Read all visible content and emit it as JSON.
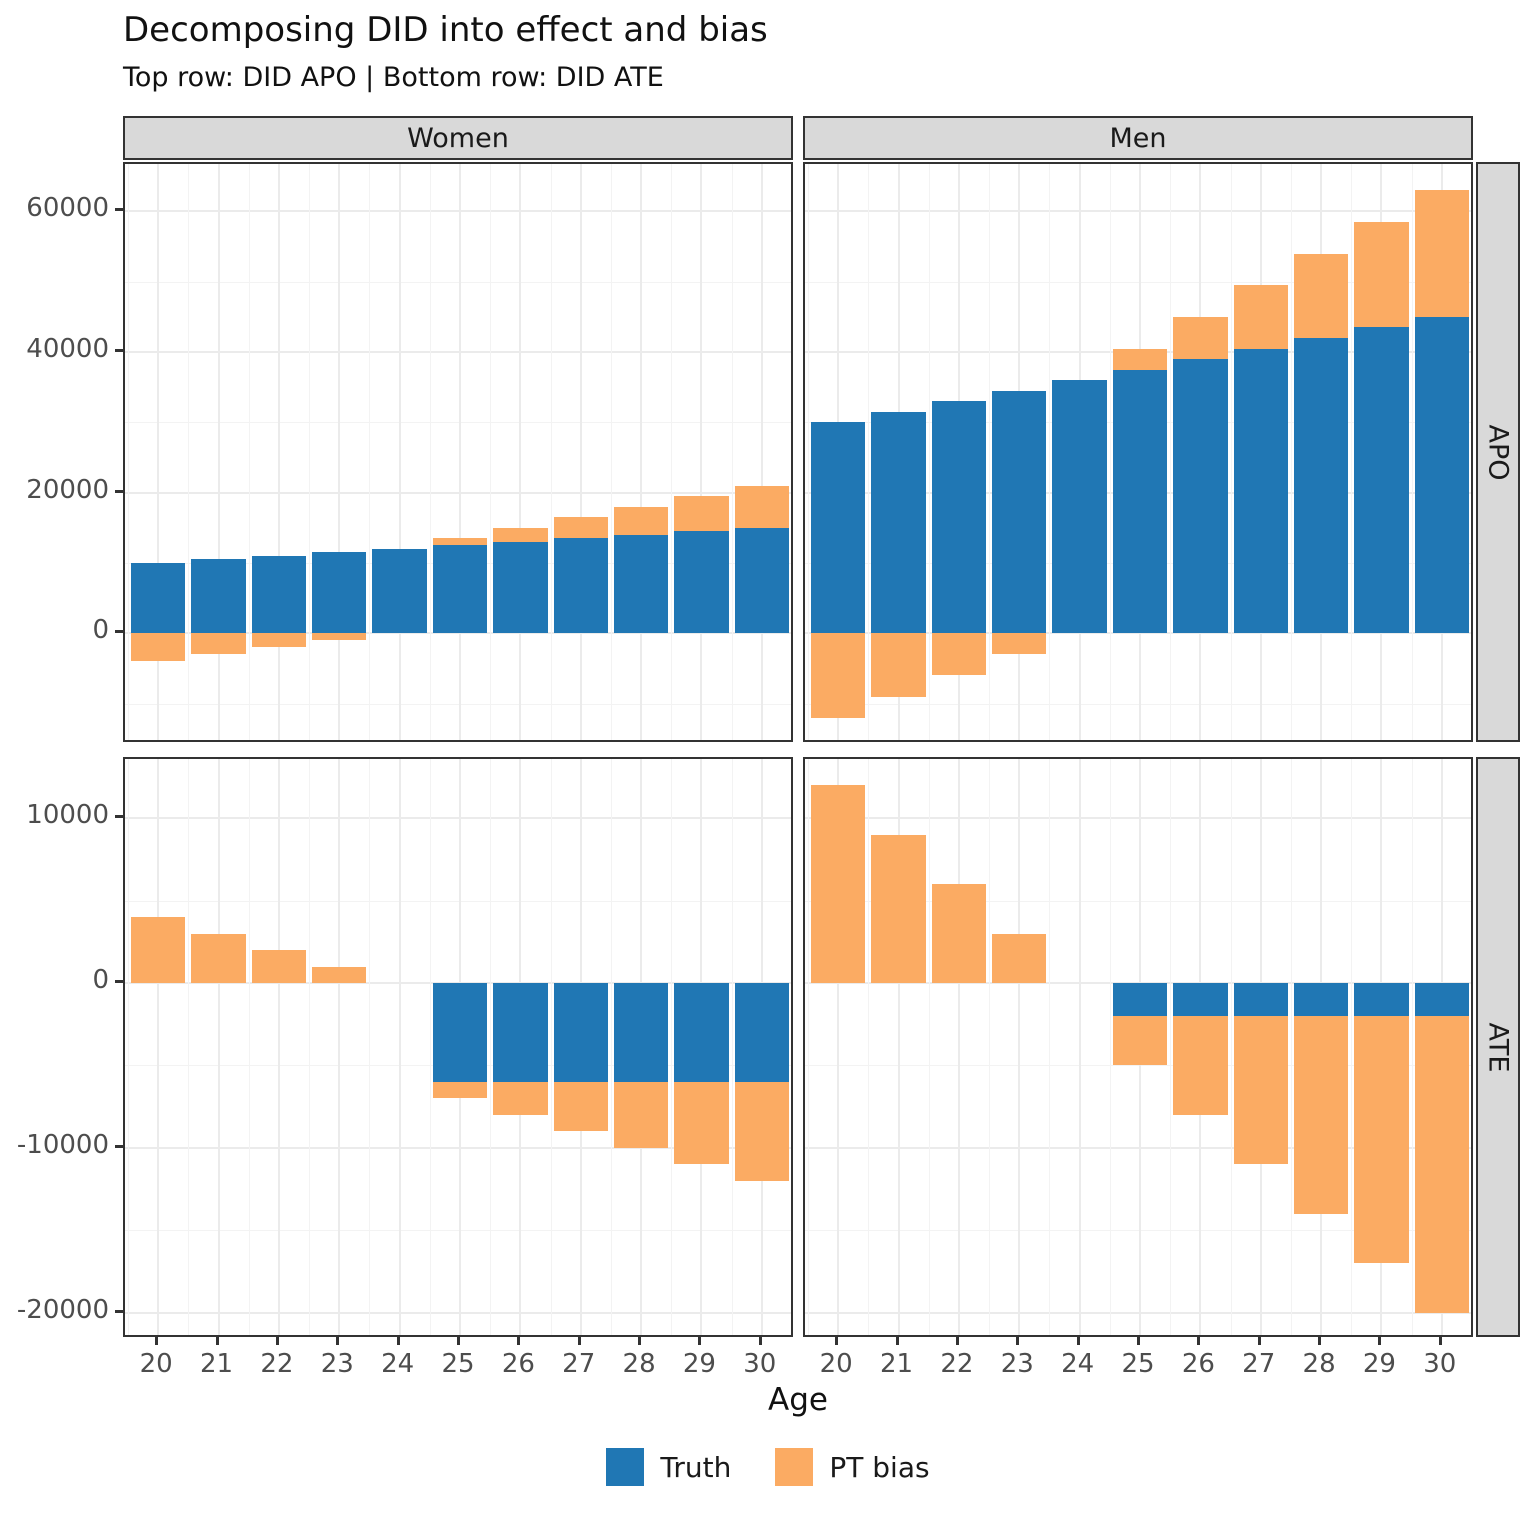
{
  "title": "Decomposing DID into effect and bias",
  "subtitle": "Top row: DID APO | Bottom row: DID ATE",
  "x_axis_title": "Age",
  "colors": {
    "truth": "#2077b4",
    "pt_bias": "#fbab63",
    "strip_bg": "#d9d9d9",
    "panel_border": "#333333",
    "grid_major": "#ebebeb",
    "grid_minor": "#f3f3f3",
    "axis_text": "#4d4d4d"
  },
  "legend": [
    {
      "label": "Truth",
      "color": "#2077b4"
    },
    {
      "label": "PT bias",
      "color": "#fbab63"
    }
  ],
  "chart_data": {
    "type": "bar",
    "stacked": true,
    "grid": true,
    "legend_position": "bottom",
    "facet_cols": [
      "Women",
      "Men"
    ],
    "facet_rows": [
      "APO",
      "ATE"
    ],
    "xlabel": "Age",
    "x": [
      20,
      21,
      22,
      23,
      24,
      25,
      26,
      27,
      28,
      29,
      30
    ],
    "x_tick_labels": [
      "20",
      "21",
      "22",
      "23",
      "24",
      "25",
      "26",
      "27",
      "28",
      "29",
      "30"
    ],
    "rows": [
      {
        "name": "APO",
        "ylim": [
          -15750,
          66750
        ],
        "major_ticks": [
          0,
          20000,
          40000,
          60000
        ],
        "major_tick_labels": [
          "0",
          "20000",
          "40000",
          "60000"
        ],
        "minor_ticks": [
          -10000,
          10000,
          30000,
          50000
        ]
      },
      {
        "name": "ATE",
        "ylim": [
          -21600,
          13600
        ],
        "major_ticks": [
          -20000,
          -10000,
          0,
          10000
        ],
        "major_tick_labels": [
          "-20000",
          "-10000",
          "0",
          "10000"
        ],
        "minor_ticks": [
          -15000,
          -5000,
          5000
        ]
      }
    ],
    "panels": [
      {
        "col": "Women",
        "row": "APO",
        "series": [
          {
            "name": "Truth",
            "values": [
              10000,
              10500,
              11000,
              11500,
              12000,
              12500,
              13000,
              13500,
              14000,
              14500,
              15000
            ]
          },
          {
            "name": "PT bias",
            "values": [
              -4000,
              -3000,
              -2000,
              -1000,
              0,
              1000,
              2000,
              3000,
              4000,
              5000,
              6000
            ]
          }
        ]
      },
      {
        "col": "Men",
        "row": "APO",
        "series": [
          {
            "name": "Truth",
            "values": [
              30000,
              31500,
              33000,
              34500,
              36000,
              37500,
              39000,
              40500,
              42000,
              43500,
              45000
            ]
          },
          {
            "name": "PT bias",
            "values": [
              -12000,
              -9000,
              -6000,
              -3000,
              0,
              3000,
              6000,
              9000,
              12000,
              15000,
              18000
            ]
          }
        ]
      },
      {
        "col": "Women",
        "row": "ATE",
        "series": [
          {
            "name": "Truth",
            "values": [
              0,
              0,
              0,
              0,
              0,
              -6000,
              -6000,
              -6000,
              -6000,
              -6000,
              -6000
            ]
          },
          {
            "name": "PT bias",
            "values": [
              4000,
              3000,
              2000,
              1000,
              0,
              -1000,
              -2000,
              -3000,
              -4000,
              -5000,
              -6000
            ]
          }
        ]
      },
      {
        "col": "Men",
        "row": "ATE",
        "series": [
          {
            "name": "Truth",
            "values": [
              0,
              0,
              0,
              0,
              0,
              -2000,
              -2000,
              -2000,
              -2000,
              -2000,
              -2000
            ]
          },
          {
            "name": "PT bias",
            "values": [
              12000,
              9000,
              6000,
              3000,
              0,
              -3000,
              -6000,
              -9000,
              -12000,
              -15000,
              -18000
            ]
          }
        ]
      }
    ]
  }
}
